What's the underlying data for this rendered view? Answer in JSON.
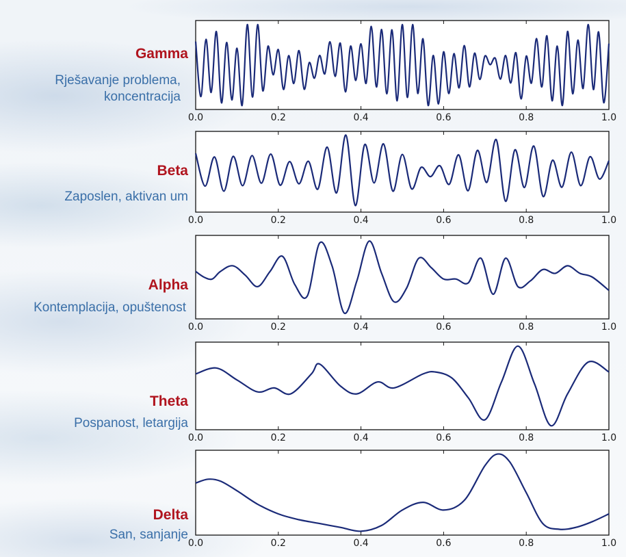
{
  "chart_data": [
    {
      "type": "line",
      "name": "Gamma",
      "description": "Rješavanje problema, koncentracija",
      "x_ticks": [
        "0.0",
        "0.2",
        "0.4",
        "0.6",
        "0.8",
        "1.0"
      ],
      "xlim": [
        0.0,
        1.0
      ],
      "ylim": [
        -1.1,
        1.1
      ],
      "grid": false,
      "wave": {
        "cycles": 40,
        "seed": 1,
        "noise": 0.45
      },
      "color": "#1a2a78"
    },
    {
      "type": "line",
      "name": "Beta",
      "description": "Zaposlen, aktivan um",
      "x_ticks": [
        "0.0",
        "0.2",
        "0.4",
        "0.6",
        "0.8",
        "1.0"
      ],
      "xlim": [
        0.0,
        1.0
      ],
      "ylim": [
        -1.1,
        1.1
      ],
      "grid": false,
      "wave": {
        "cycles": 22,
        "seed": 2,
        "noise": 0.25
      },
      "color": "#1a2a78"
    },
    {
      "type": "line",
      "name": "Alpha",
      "description": "Kontemplacija, opuštenost",
      "x_ticks": [
        "0.0",
        "0.2",
        "0.4",
        "0.6",
        "0.8",
        "1.0"
      ],
      "xlim": [
        0.0,
        1.0
      ],
      "ylim": [
        -1.1,
        1.1
      ],
      "grid": false,
      "x": [
        0.0,
        0.02,
        0.04,
        0.06,
        0.09,
        0.12,
        0.15,
        0.18,
        0.21,
        0.24,
        0.27,
        0.3,
        0.33,
        0.36,
        0.39,
        0.42,
        0.45,
        0.48,
        0.51,
        0.54,
        0.57,
        0.6,
        0.63,
        0.66,
        0.69,
        0.72,
        0.75,
        0.78,
        0.81,
        0.84,
        0.87,
        0.9,
        0.93,
        0.96,
        1.0
      ],
      "y": [
        0.15,
        0.0,
        -0.05,
        0.15,
        0.3,
        0.05,
        -0.25,
        0.15,
        0.55,
        -0.2,
        -0.5,
        0.9,
        0.3,
        -0.95,
        -0.1,
        0.95,
        0.1,
        -0.65,
        -0.3,
        0.5,
        0.25,
        -0.05,
        -0.05,
        -0.15,
        0.5,
        -0.45,
        0.5,
        -0.25,
        -0.1,
        0.2,
        0.1,
        0.3,
        0.1,
        0.0,
        -0.35
      ],
      "color": "#1a2a78"
    },
    {
      "type": "line",
      "name": "Theta",
      "description": "Pospanost, letargija",
      "x_ticks": [
        "0.0",
        "0.2",
        "0.4",
        "0.6",
        "0.8",
        "1.0"
      ],
      "xlim": [
        0.0,
        1.0
      ],
      "ylim": [
        -1.1,
        1.1
      ],
      "grid": false,
      "x": [
        0.0,
        0.05,
        0.1,
        0.15,
        0.19,
        0.23,
        0.28,
        0.3,
        0.35,
        0.39,
        0.44,
        0.48,
        0.55,
        0.58,
        0.62,
        0.66,
        0.7,
        0.74,
        0.78,
        0.82,
        0.86,
        0.9,
        0.95,
        1.0
      ],
      "y": [
        0.3,
        0.45,
        0.15,
        -0.15,
        -0.05,
        -0.2,
        0.3,
        0.55,
        0.0,
        -0.2,
        0.1,
        -0.05,
        0.3,
        0.35,
        0.2,
        -0.3,
        -0.85,
        0.1,
        1.0,
        0.05,
        -1.0,
        -0.2,
        0.6,
        0.35
      ],
      "color": "#1a2a78"
    },
    {
      "type": "line",
      "name": "Delta",
      "description": "San, sanjanje",
      "x_ticks": [
        "0.0",
        "0.2",
        "0.4",
        "0.6",
        "0.8",
        "1.0"
      ],
      "xlim": [
        0.0,
        1.0
      ],
      "ylim": [
        -1.1,
        1.1
      ],
      "grid": false,
      "x": [
        0.0,
        0.03,
        0.06,
        0.1,
        0.15,
        0.2,
        0.25,
        0.3,
        0.35,
        0.4,
        0.45,
        0.5,
        0.55,
        0.6,
        0.65,
        0.7,
        0.73,
        0.76,
        0.8,
        0.84,
        0.88,
        0.92,
        0.96,
        1.0
      ],
      "y": [
        0.25,
        0.35,
        0.3,
        0.05,
        -0.3,
        -0.55,
        -0.7,
        -0.8,
        -0.9,
        -1.0,
        -0.85,
        -0.45,
        -0.25,
        -0.45,
        -0.2,
        0.7,
        1.0,
        0.8,
        0.0,
        -0.8,
        -0.95,
        -0.9,
        -0.75,
        -0.55
      ],
      "color": "#1a2a78"
    }
  ]
}
